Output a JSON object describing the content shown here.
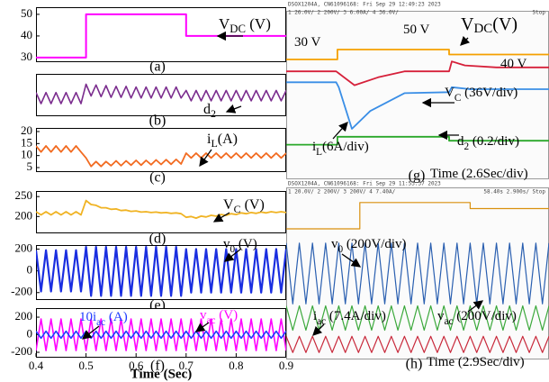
{
  "chart_data": [
    {
      "type": "line",
      "panel_label": "(a)",
      "xlim": [
        0.4,
        0.9
      ],
      "ylim": [
        28.3,
        53.3
      ],
      "yticks": [
        30,
        40,
        50
      ],
      "x": [
        0.4,
        0.5,
        0.5,
        0.7,
        0.7,
        0.9
      ],
      "series": [
        {
          "color": "#ff00ff",
          "values": [
            30,
            30,
            50,
            50,
            40,
            40
          ]
        }
      ],
      "annotations": [
        {
          "text": "V",
          "sub": "DC",
          "tail": " (V)",
          "color": "#000000"
        }
      ]
    },
    {
      "type": "line",
      "panel_label": "(b)",
      "xlim": [
        0.4,
        0.9
      ],
      "ylim": [
        0.3,
        0.9
      ],
      "x": [
        0.4,
        0.41,
        0.42,
        0.43,
        0.44,
        0.45,
        0.46,
        0.47,
        0.48,
        0.49,
        0.5,
        0.51,
        0.52,
        0.53,
        0.54,
        0.55,
        0.56,
        0.57,
        0.58,
        0.59,
        0.6,
        0.61,
        0.62,
        0.63,
        0.64,
        0.65,
        0.66,
        0.67,
        0.68,
        0.69,
        0.7,
        0.71,
        0.72,
        0.73,
        0.74,
        0.75,
        0.76,
        0.77,
        0.78,
        0.79,
        0.8,
        0.81,
        0.82,
        0.83,
        0.84,
        0.85,
        0.86,
        0.87,
        0.88,
        0.89,
        0.9
      ],
      "series": [
        {
          "color": "#7b2d8e",
          "values": [
            0.63,
            0.47,
            0.63,
            0.47,
            0.63,
            0.47,
            0.63,
            0.47,
            0.63,
            0.47,
            0.75,
            0.58,
            0.74,
            0.57,
            0.73,
            0.56,
            0.72,
            0.56,
            0.72,
            0.55,
            0.71,
            0.55,
            0.71,
            0.55,
            0.71,
            0.55,
            0.71,
            0.55,
            0.71,
            0.55,
            0.66,
            0.51,
            0.66,
            0.51,
            0.66,
            0.51,
            0.66,
            0.51,
            0.66,
            0.51,
            0.66,
            0.51,
            0.66,
            0.51,
            0.66,
            0.51,
            0.66,
            0.51,
            0.66,
            0.51,
            0.66
          ]
        }
      ],
      "annotations": [
        {
          "text": "d",
          "sub": "2",
          "color": "#000000"
        }
      ]
    },
    {
      "type": "line",
      "panel_label": "(c)",
      "xlim": [
        0.4,
        0.9
      ],
      "ylim": [
        3.5,
        21.5
      ],
      "yticks": [
        5,
        10,
        15,
        20
      ],
      "x": [
        0.4,
        0.41,
        0.42,
        0.43,
        0.44,
        0.45,
        0.46,
        0.47,
        0.48,
        0.49,
        0.5,
        0.51,
        0.52,
        0.53,
        0.54,
        0.55,
        0.56,
        0.57,
        0.58,
        0.59,
        0.6,
        0.61,
        0.62,
        0.63,
        0.64,
        0.65,
        0.66,
        0.67,
        0.68,
        0.69,
        0.7,
        0.71,
        0.72,
        0.73,
        0.74,
        0.75,
        0.76,
        0.77,
        0.78,
        0.79,
        0.8,
        0.81,
        0.82,
        0.83,
        0.84,
        0.85,
        0.86,
        0.87,
        0.88,
        0.89,
        0.9
      ],
      "series": [
        {
          "color": "#f26b21",
          "values": [
            14,
            11.5,
            14,
            11.5,
            14,
            11.5,
            14,
            11.5,
            14,
            11.5,
            9,
            5.5,
            7.5,
            5.5,
            7.5,
            5.8,
            7.8,
            5.8,
            7.8,
            6,
            8,
            6,
            8,
            6.2,
            8.2,
            6.3,
            8.3,
            6.4,
            8.4,
            6.5,
            11,
            9,
            11,
            9,
            11,
            9,
            11,
            9,
            11,
            9,
            11,
            9,
            11,
            9,
            11,
            9,
            11,
            9,
            11,
            9,
            11
          ]
        }
      ],
      "annotations": [
        {
          "text": "i",
          "sub": "L",
          "tail": "(A)",
          "color": "#000000"
        }
      ]
    },
    {
      "type": "line",
      "panel_label": "(d)",
      "xlim": [
        0.4,
        0.9
      ],
      "ylim": [
        160,
        264
      ],
      "yticks": [
        200,
        250
      ],
      "x": [
        0.4,
        0.41,
        0.42,
        0.43,
        0.44,
        0.45,
        0.46,
        0.47,
        0.48,
        0.49,
        0.5,
        0.51,
        0.52,
        0.53,
        0.54,
        0.55,
        0.56,
        0.57,
        0.58,
        0.59,
        0.6,
        0.61,
        0.62,
        0.63,
        0.64,
        0.65,
        0.66,
        0.67,
        0.68,
        0.69,
        0.7,
        0.71,
        0.72,
        0.73,
        0.74,
        0.75,
        0.76,
        0.77,
        0.78,
        0.79,
        0.8,
        0.81,
        0.82,
        0.83,
        0.84,
        0.85,
        0.86,
        0.87,
        0.88,
        0.89,
        0.9
      ],
      "series": [
        {
          "color": "#f0b323",
          "values": [
            212,
            204,
            212,
            204,
            212,
            204,
            212,
            204,
            212,
            204,
            240,
            230,
            228,
            222,
            222,
            218,
            219,
            215,
            216,
            213,
            214,
            211,
            212,
            210,
            211,
            209,
            210,
            208,
            209,
            207,
            198,
            200,
            196,
            201,
            199,
            203,
            201,
            205,
            203,
            207,
            205,
            209,
            207,
            210,
            208,
            211,
            209,
            212,
            210,
            212,
            210
          ]
        }
      ],
      "annotations": [
        {
          "text": "V",
          "sub": "C",
          "tail": " (V)",
          "color": "#000000"
        }
      ]
    },
    {
      "type": "line",
      "panel_label": "(e)",
      "xlim": [
        0.4,
        0.9
      ],
      "ylim": [
        -260,
        237
      ],
      "yticks": [
        -200,
        0,
        200
      ],
      "x": [
        0.4,
        0.41,
        0.42,
        0.43,
        0.44,
        0.45,
        0.46,
        0.47,
        0.48,
        0.49,
        0.5,
        0.51,
        0.52,
        0.53,
        0.54,
        0.55,
        0.56,
        0.57,
        0.58,
        0.59,
        0.6,
        0.61,
        0.62,
        0.63,
        0.64,
        0.65,
        0.66,
        0.67,
        0.68,
        0.69,
        0.7,
        0.71,
        0.72,
        0.73,
        0.74,
        0.75,
        0.76,
        0.77,
        0.78,
        0.79,
        0.8,
        0.81,
        0.82,
        0.83,
        0.84,
        0.85,
        0.86,
        0.87,
        0.88,
        0.89,
        0.9
      ],
      "series": [
        {
          "color": "#1a2ee0",
          "values": [
            190,
            -190,
            190,
            -190,
            190,
            -190,
            190,
            -190,
            190,
            -190,
            220,
            -230,
            220,
            -230,
            220,
            -230,
            220,
            -230,
            220,
            -230,
            220,
            -230,
            220,
            -230,
            220,
            -230,
            220,
            -230,
            220,
            -230,
            200,
            -200,
            200,
            -200,
            200,
            -200,
            200,
            -200,
            200,
            -200,
            200,
            -200,
            200,
            -200,
            200,
            -200,
            200,
            -200,
            200,
            -200,
            200
          ]
        }
      ],
      "annotations": [
        {
          "text": "v",
          "sub": "0",
          "tail": " (V)",
          "color": "#000000"
        }
      ]
    },
    {
      "type": "line",
      "panel_label": "(f)",
      "xlim": [
        0.4,
        0.9
      ],
      "ylim": [
        -251,
        303
      ],
      "yticks": [
        -200,
        0,
        200
      ],
      "xticks": [
        0.4,
        0.5,
        0.6,
        0.7,
        0.8,
        0.9
      ],
      "xlabel": "Time (Sec)",
      "x": [
        0.4,
        0.41,
        0.42,
        0.43,
        0.44,
        0.45,
        0.46,
        0.47,
        0.48,
        0.49,
        0.5,
        0.51,
        0.52,
        0.53,
        0.54,
        0.55,
        0.56,
        0.57,
        0.58,
        0.59,
        0.6,
        0.61,
        0.62,
        0.63,
        0.64,
        0.65,
        0.66,
        0.67,
        0.68,
        0.69,
        0.7,
        0.71,
        0.72,
        0.73,
        0.74,
        0.75,
        0.76,
        0.77,
        0.78,
        0.79,
        0.8,
        0.81,
        0.82,
        0.83,
        0.84,
        0.85,
        0.86,
        0.87,
        0.88,
        0.89,
        0.9
      ],
      "series": [
        {
          "color": "#ff00ff",
          "values": [
            -180,
            180,
            -180,
            180,
            -180,
            180,
            -180,
            180,
            -180,
            180,
            -180,
            180,
            -180,
            180,
            -180,
            180,
            -180,
            180,
            -180,
            180,
            -180,
            180,
            -180,
            180,
            -180,
            180,
            -180,
            180,
            -180,
            180,
            -180,
            180,
            -180,
            180,
            -180,
            180,
            -180,
            180,
            -180,
            180,
            -180,
            180,
            -180,
            180,
            -180,
            180,
            -180,
            180,
            -180,
            180,
            -180
          ]
        },
        {
          "color": "#1e3cff",
          "values": [
            40,
            -40,
            40,
            -40,
            40,
            -40,
            40,
            -40,
            40,
            -40,
            40,
            -40,
            40,
            -40,
            40,
            -40,
            40,
            -40,
            40,
            -40,
            40,
            -40,
            40,
            -40,
            40,
            -40,
            40,
            -40,
            40,
            -40,
            40,
            -40,
            40,
            -40,
            40,
            -40,
            40,
            -40,
            40,
            -40,
            40,
            -40,
            40,
            -40,
            40,
            -40,
            40,
            -40,
            40,
            -40,
            40
          ]
        }
      ],
      "annotations": [
        {
          "text": "10i",
          "sub": "ac",
          "tail": " (A)",
          "color": "#1e3cff"
        },
        {
          "text": "v",
          "sub": "ac",
          "tail": " (V)",
          "color": "#ff00ff"
        }
      ]
    },
    {
      "type": "line",
      "panel_label": "(g)",
      "xlim": [
        0,
        10
      ],
      "ylim": [
        -4,
        4
      ],
      "header": "DSOX1204A, CN61096168: Fri Sep 29 12:49:23 2023",
      "channels": "1  26.0V/   2  200V/   3  6.00A/   4  36.0V/",
      "status": "Stop",
      "x": [
        0,
        1.9,
        2.0,
        2.5,
        3.2,
        4.5,
        6.2,
        6.3,
        7,
        10
      ],
      "series": [
        {
          "color": "#f5a000",
          "x": [
            0,
            1.95,
            1.95,
            6.2,
            6.2,
            10
          ],
          "values": [
            2.0,
            2.0,
            2.5,
            2.5,
            2.25,
            2.25
          ]
        },
        {
          "color": "#d6203a",
          "x": [
            0,
            1.9,
            2.0,
            2.6,
            3.5,
            4.5,
            6.2,
            6.3,
            6.8,
            8,
            10
          ],
          "values": [
            1.4,
            1.4,
            1.3,
            0.7,
            1.1,
            1.4,
            1.4,
            1.9,
            1.7,
            1.6,
            1.6
          ]
        },
        {
          "color": "#3a8ee6",
          "values": [
            0.85,
            0.85,
            0.6,
            -1.5,
            -0.6,
            0.3,
            0.35,
            0.6,
            0.5,
            0.5
          ]
        },
        {
          "color": "#2aa82a",
          "x": [
            0,
            1.95,
            1.95,
            6.2,
            6.2,
            10
          ],
          "values": [
            -2.3,
            -2.3,
            -1.9,
            -1.9,
            -2.1,
            -2.1
          ]
        }
      ],
      "annotations": [
        {
          "text": "30 V",
          "color": "#000000"
        },
        {
          "text": "50 V",
          "color": "#000000"
        },
        {
          "text": "40 V",
          "color": "#000000"
        },
        {
          "text": "V",
          "sub": "DC",
          "tail": "(V)",
          "color": "#000000"
        },
        {
          "text": "V",
          "sub": "C",
          "tail": " (36V/div)",
          "color": "#000000"
        },
        {
          "text": "i",
          "sub": "L",
          "tail": "(6A/div)",
          "color": "#000000"
        },
        {
          "text": "d",
          "sub": "2",
          "tail": " (0.2/div)",
          "color": "#000000"
        },
        {
          "text": "Time (2.6Sec/div)",
          "color": "#000000"
        }
      ]
    },
    {
      "type": "line",
      "panel_label": "(h)",
      "xlim": [
        0,
        10
      ],
      "ylim": [
        -4,
        4
      ],
      "header": "DSOX1204A, CN61096168: Fri Sep 29 11:53:37 2023",
      "channels": "1  20.0V/   2  200V/   3  200V/   4  7.40A/",
      "status": "58.40s   2.900s/   Stop",
      "x": [
        0,
        0.25,
        0.5,
        0.75,
        1,
        1.25,
        1.5,
        1.75,
        2,
        2.25,
        2.5,
        2.75,
        3,
        3.25,
        3.5,
        3.75,
        4,
        4.25,
        4.5,
        4.75,
        5,
        5.25,
        5.5,
        5.75,
        6,
        6.25,
        6.5,
        6.75,
        7,
        7.25,
        7.5,
        7.75,
        8,
        8.25,
        8.5,
        8.75,
        9,
        9.25,
        9.5,
        9.75,
        10
      ],
      "series": [
        {
          "color": "#d9900e",
          "x": [
            0,
            2.8,
            2.8,
            7.0,
            7.0,
            10
          ],
          "values": [
            2.4,
            2.4,
            3.7,
            3.7,
            3.4,
            3.4
          ]
        },
        {
          "color": "#2a5fb0",
          "values": [
            1.7,
            -1.3,
            1.7,
            -1.3,
            1.7,
            -1.3,
            1.7,
            -1.3,
            1.7,
            -1.3,
            1.7,
            -1.3,
            1.7,
            -1.3,
            1.7,
            -1.3,
            1.7,
            -1.3,
            1.7,
            -1.3,
            1.7,
            -1.3,
            1.7,
            -1.3,
            1.7,
            -1.3,
            1.7,
            -1.3,
            1.7,
            -1.3,
            1.7,
            -1.3,
            1.7,
            -1.3,
            1.7,
            -1.3,
            1.7,
            -1.3,
            1.7,
            -1.3,
            1.7
          ]
        },
        {
          "color": "#3aa83a",
          "values": [
            -1.4,
            -2.6,
            -1.4,
            -2.6,
            -1.4,
            -2.6,
            -1.4,
            -2.6,
            -1.4,
            -2.6,
            -1.4,
            -2.6,
            -1.4,
            -2.6,
            -1.4,
            -2.6,
            -1.4,
            -2.6,
            -1.4,
            -2.6,
            -1.4,
            -2.6,
            -1.4,
            -2.6,
            -1.4,
            -2.6,
            -1.4,
            -2.6,
            -1.4,
            -2.6,
            -1.4,
            -2.6,
            -1.4,
            -2.6,
            -1.4,
            -2.6,
            -1.4,
            -2.6,
            -1.4,
            -2.6,
            -1.4
          ]
        },
        {
          "color": "#c8283a",
          "values": [
            -2.9,
            -3.7,
            -2.9,
            -3.7,
            -2.9,
            -3.7,
            -2.9,
            -3.7,
            -2.9,
            -3.7,
            -2.9,
            -3.7,
            -2.9,
            -3.7,
            -2.9,
            -3.7,
            -2.9,
            -3.7,
            -2.9,
            -3.7,
            -2.9,
            -3.7,
            -2.9,
            -3.7,
            -2.9,
            -3.7,
            -2.9,
            -3.7,
            -2.9,
            -3.7,
            -2.9,
            -3.7,
            -2.9,
            -3.7,
            -2.9,
            -3.7,
            -2.9,
            -3.7,
            -2.9,
            -3.7,
            -2.9
          ]
        }
      ],
      "annotations": [
        {
          "text": "v",
          "sub": "0",
          "tail": " (200V/div)",
          "color": "#000000"
        },
        {
          "text": "i",
          "sub": "ac",
          "tail": " (7.4A/div)",
          "color": "#000000"
        },
        {
          "text": "v",
          "sub": "ac",
          "tail": " (200V/div)",
          "color": "#000000"
        },
        {
          "text": "Time (2.9Sec/div)",
          "color": "#000000"
        }
      ]
    }
  ]
}
